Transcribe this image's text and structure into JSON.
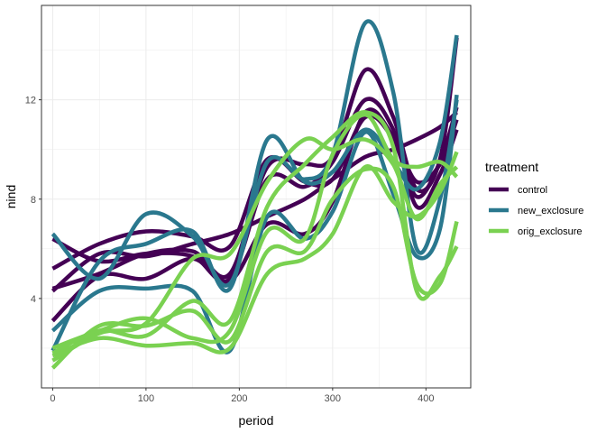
{
  "chart_data": {
    "type": "line",
    "xlabel": "period",
    "ylabel": "nind",
    "xlim": [
      -12,
      448
    ],
    "ylim": [
      0.4,
      15.8
    ],
    "x_ticks": [
      0,
      100,
      200,
      300,
      400
    ],
    "y_ticks": [
      4,
      8,
      12
    ],
    "x_minor": [
      50,
      150,
      250,
      350
    ],
    "y_minor": [
      2,
      6,
      10,
      14
    ],
    "grid": true,
    "legend": {
      "title": "treatment",
      "placement": "right",
      "entries": [
        {
          "name": "control",
          "color": "#440154"
        },
        {
          "name": "new_exclosure",
          "color": "#2a788e"
        },
        {
          "name": "orig_exclosure",
          "color": "#7ad151"
        }
      ]
    },
    "series": [
      {
        "group": "control",
        "color": "#440154",
        "points": [
          [
            0,
            3.1
          ],
          [
            50,
            4.9
          ],
          [
            100,
            4.8
          ],
          [
            150,
            5.6
          ],
          [
            190,
            4.7
          ],
          [
            230,
            7.0
          ],
          [
            270,
            6.6
          ],
          [
            300,
            7.9
          ],
          [
            335,
            11.5
          ],
          [
            365,
            10.5
          ],
          [
            390,
            8.7
          ],
          [
            415,
            9.4
          ],
          [
            433,
            11.2
          ]
        ]
      },
      {
        "group": "control",
        "color": "#440154",
        "points": [
          [
            0,
            4.4
          ],
          [
            50,
            5.0
          ],
          [
            100,
            5.8
          ],
          [
            150,
            5.9
          ],
          [
            190,
            5.0
          ],
          [
            230,
            9.3
          ],
          [
            270,
            9.4
          ],
          [
            300,
            9.7
          ],
          [
            335,
            13.2
          ],
          [
            365,
            11.3
          ],
          [
            390,
            8.4
          ],
          [
            415,
            9.6
          ],
          [
            433,
            14.5
          ]
        ]
      },
      {
        "group": "control",
        "color": "#440154",
        "points": [
          [
            0,
            6.4
          ],
          [
            50,
            5.5
          ],
          [
            100,
            5.8
          ],
          [
            150,
            5.7
          ],
          [
            190,
            4.8
          ],
          [
            230,
            8.8
          ],
          [
            270,
            8.5
          ],
          [
            300,
            9.5
          ],
          [
            335,
            12.0
          ],
          [
            365,
            10.8
          ],
          [
            390,
            7.7
          ],
          [
            415,
            9.0
          ],
          [
            433,
            10.8
          ]
        ]
      },
      {
        "group": "control",
        "color": "#440154",
        "points": [
          [
            0,
            5.2
          ],
          [
            50,
            6.2
          ],
          [
            100,
            6.7
          ],
          [
            150,
            6.5
          ],
          [
            190,
            6.1
          ],
          [
            230,
            9.6
          ],
          [
            270,
            8.7
          ],
          [
            300,
            8.8
          ],
          [
            335,
            11.3
          ],
          [
            365,
            10.4
          ],
          [
            390,
            8.1
          ],
          [
            415,
            9.5
          ],
          [
            433,
            11.7
          ]
        ]
      },
      {
        "group": "control",
        "color": "#440154",
        "points": [
          [
            0,
            4.3
          ],
          [
            50,
            5.8
          ],
          [
            100,
            5.7
          ],
          [
            150,
            6.2
          ],
          [
            190,
            6.6
          ],
          [
            230,
            7.3
          ],
          [
            270,
            8.0
          ],
          [
            300,
            8.8
          ],
          [
            335,
            9.7
          ],
          [
            365,
            10.0
          ],
          [
            390,
            10.4
          ],
          [
            415,
            10.9
          ],
          [
            433,
            11.5
          ]
        ]
      },
      {
        "group": "new_exclosure",
        "color": "#2a788e",
        "points": [
          [
            0,
            6.6
          ],
          [
            50,
            4.8
          ],
          [
            100,
            7.4
          ],
          [
            150,
            6.5
          ],
          [
            190,
            4.6
          ],
          [
            230,
            9.5
          ],
          [
            270,
            8.8
          ],
          [
            300,
            9.8
          ],
          [
            335,
            15.1
          ],
          [
            365,
            12.3
          ],
          [
            390,
            6.0
          ],
          [
            415,
            8.0
          ],
          [
            433,
            12.0
          ]
        ]
      },
      {
        "group": "new_exclosure",
        "color": "#2a788e",
        "points": [
          [
            0,
            2.7
          ],
          [
            50,
            4.3
          ],
          [
            100,
            4.4
          ],
          [
            150,
            4.3
          ],
          [
            190,
            1.9
          ],
          [
            230,
            7.3
          ],
          [
            270,
            6.4
          ],
          [
            300,
            7.5
          ],
          [
            335,
            10.7
          ],
          [
            365,
            8.2
          ],
          [
            390,
            5.7
          ],
          [
            415,
            6.8
          ],
          [
            433,
            12.2
          ]
        ]
      },
      {
        "group": "new_exclosure",
        "color": "#2a788e",
        "points": [
          [
            0,
            1.9
          ],
          [
            50,
            5.5
          ],
          [
            100,
            6.2
          ],
          [
            150,
            6.7
          ],
          [
            190,
            4.4
          ],
          [
            230,
            10.4
          ],
          [
            270,
            8.7
          ],
          [
            300,
            9.1
          ],
          [
            335,
            10.8
          ],
          [
            365,
            9.5
          ],
          [
            390,
            8.4
          ],
          [
            415,
            10.3
          ],
          [
            433,
            14.6
          ]
        ]
      },
      {
        "group": "orig_exclosure",
        "color": "#7ad151",
        "points": [
          [
            0,
            1.7
          ],
          [
            50,
            2.4
          ],
          [
            100,
            2.1
          ],
          [
            150,
            2.2
          ],
          [
            190,
            2.0
          ],
          [
            230,
            5.0
          ],
          [
            270,
            5.6
          ],
          [
            300,
            6.6
          ],
          [
            335,
            9.3
          ],
          [
            365,
            7.9
          ],
          [
            390,
            7.3
          ],
          [
            415,
            8.3
          ],
          [
            433,
            9.9
          ]
        ]
      },
      {
        "group": "orig_exclosure",
        "color": "#7ad151",
        "points": [
          [
            0,
            1.2
          ],
          [
            50,
            2.9
          ],
          [
            100,
            2.9
          ],
          [
            150,
            3.5
          ],
          [
            190,
            2.3
          ],
          [
            230,
            5.9
          ],
          [
            270,
            5.9
          ],
          [
            300,
            8.0
          ],
          [
            335,
            9.2
          ],
          [
            365,
            8.5
          ],
          [
            390,
            4.6
          ],
          [
            415,
            4.6
          ],
          [
            433,
            7.1
          ]
        ]
      },
      {
        "group": "orig_exclosure",
        "color": "#7ad151",
        "points": [
          [
            0,
            2.0
          ],
          [
            50,
            2.7
          ],
          [
            100,
            3.2
          ],
          [
            150,
            2.4
          ],
          [
            190,
            2.7
          ],
          [
            230,
            6.7
          ],
          [
            270,
            6.4
          ],
          [
            300,
            9.8
          ],
          [
            335,
            11.4
          ],
          [
            365,
            9.6
          ],
          [
            390,
            9.3
          ],
          [
            415,
            9.5
          ],
          [
            433,
            8.9
          ]
        ]
      },
      {
        "group": "orig_exclosure",
        "color": "#7ad151",
        "points": [
          [
            0,
            1.8
          ],
          [
            50,
            2.7
          ],
          [
            100,
            2.5
          ],
          [
            150,
            3.9
          ],
          [
            190,
            3.1
          ],
          [
            230,
            7.7
          ],
          [
            270,
            9.4
          ],
          [
            300,
            10.5
          ],
          [
            335,
            11.5
          ],
          [
            365,
            10.1
          ],
          [
            390,
            4.3
          ],
          [
            415,
            4.9
          ],
          [
            433,
            6.1
          ]
        ]
      },
      {
        "group": "orig_exclosure",
        "color": "#7ad151",
        "points": [
          [
            0,
            1.5
          ],
          [
            50,
            2.6
          ],
          [
            100,
            3.0
          ],
          [
            150,
            5.6
          ],
          [
            190,
            5.8
          ],
          [
            230,
            8.7
          ],
          [
            270,
            10.4
          ],
          [
            300,
            10.0
          ],
          [
            335,
            10.4
          ],
          [
            365,
            9.4
          ],
          [
            390,
            7.2
          ],
          [
            415,
            8.6
          ],
          [
            433,
            9.3
          ]
        ]
      }
    ]
  }
}
